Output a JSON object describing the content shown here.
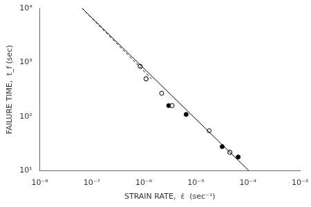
{
  "chart_data": {
    "type": "line",
    "log": true,
    "grid": false,
    "xlabel": "STRAIN RATE,  ε̇  (sec⁻¹)",
    "ylabel": "FAILURE TIME,  t_f (sec)",
    "xlim": [
      1e-08,
      0.001
    ],
    "ylim": [
      10,
      10000
    ],
    "xticks": [
      {
        "value": 1e-08,
        "label": "10⁻⁸"
      },
      {
        "value": 1e-07,
        "label": "10⁻⁷"
      },
      {
        "value": 1e-06,
        "label": "10⁻⁶"
      },
      {
        "value": 1e-05,
        "label": "10⁻⁵"
      },
      {
        "value": 0.0001,
        "label": "10⁻⁴"
      },
      {
        "value": 0.001,
        "label": "10⁻³"
      }
    ],
    "yticks": [
      {
        "value": 10,
        "label": "10¹"
      },
      {
        "value": 100,
        "label": "10²"
      },
      {
        "value": 1000,
        "label": "10³"
      },
      {
        "value": 10000,
        "label": "10⁴"
      }
    ],
    "series": [
      {
        "type": "line",
        "line_style": "solid",
        "color": "#000000",
        "x": [
          6.5e-08,
          0.000105
        ],
        "values": [
          10000,
          10
        ]
      },
      {
        "type": "line",
        "line_style": "dashed",
        "color": "#000000",
        "x": [
          6.5e-08,
          1.4e-06
        ],
        "values": [
          10000,
          500
        ]
      },
      {
        "type": "scatter",
        "marker": "open_circle",
        "color": "#000000",
        "x": [
          8.5e-07,
          1.1e-06,
          2.2e-06,
          3.5e-06,
          1.8e-05,
          4.5e-05
        ],
        "values": [
          850,
          500,
          270,
          160,
          55,
          22
        ]
      },
      {
        "type": "scatter",
        "marker": "circle",
        "color": "#000000",
        "x": [
          1.1e-06,
          3e-06,
          6.5e-06,
          3.2e-05,
          4.5e-05,
          6.5e-05
        ],
        "values": [
          500,
          160,
          110,
          28,
          22,
          18
        ]
      }
    ]
  }
}
